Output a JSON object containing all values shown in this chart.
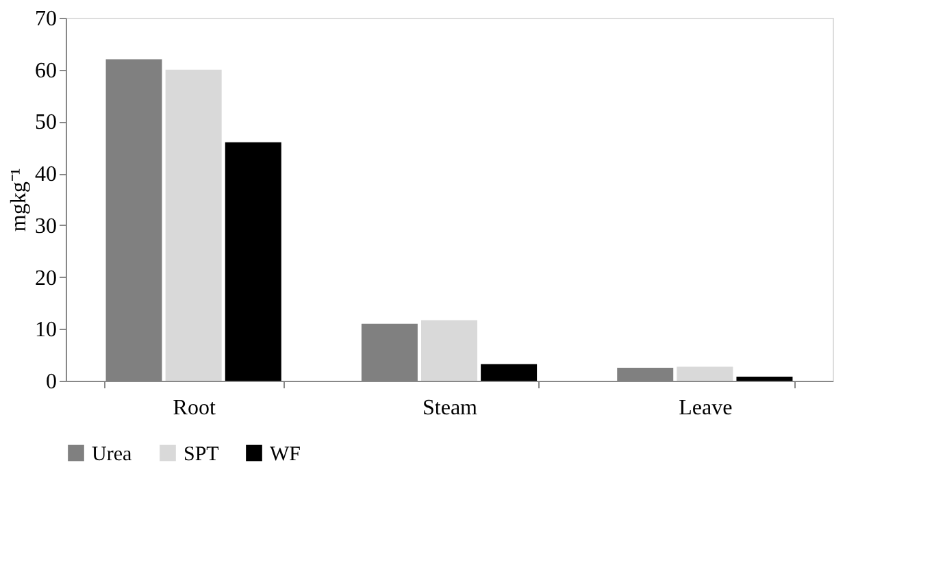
{
  "chart_data": {
    "type": "bar",
    "ylabel": "mgkg⁻¹",
    "categories": [
      "Root",
      "Steam",
      "Leave"
    ],
    "series": [
      {
        "name": "Urea",
        "color": "#808080",
        "values": [
          62,
          11,
          2.5
        ]
      },
      {
        "name": "SPT",
        "color": "#d9d9d9",
        "values": [
          60,
          11.7,
          2.7
        ]
      },
      {
        "name": "WF",
        "color": "#000000",
        "values": [
          46,
          3.2,
          0.8
        ]
      }
    ],
    "ylim": [
      0,
      70
    ],
    "yticks": [
      0,
      10,
      20,
      30,
      40,
      50,
      60,
      70
    ],
    "grid": false,
    "legend": "bottom"
  }
}
